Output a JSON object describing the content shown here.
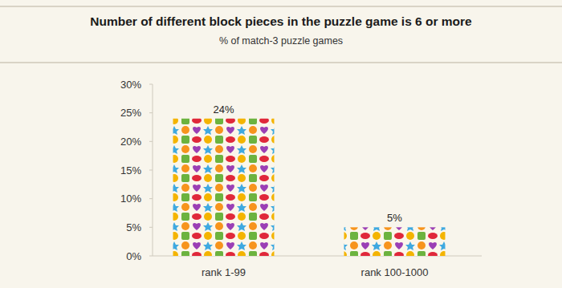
{
  "chart_data": {
    "type": "bar",
    "title": "Number of different block pieces in the puzzle game is 6 or more",
    "subtitle": "% of match-3 puzzle games",
    "categories": [
      "rank 1-99",
      "rank 100-1000"
    ],
    "values": [
      24,
      5
    ],
    "value_labels": [
      "24%",
      "5%"
    ],
    "data_labels": true,
    "ylim": [
      0,
      30
    ],
    "yticks": [
      {
        "value": 0,
        "label": "0%"
      },
      {
        "value": 5,
        "label": "5%"
      },
      {
        "value": 10,
        "label": "10%"
      },
      {
        "value": 15,
        "label": "15%"
      },
      {
        "value": 20,
        "label": "20%"
      },
      {
        "value": 25,
        "label": "25%"
      },
      {
        "value": 30,
        "label": "30%"
      }
    ],
    "grid": false
  }
}
